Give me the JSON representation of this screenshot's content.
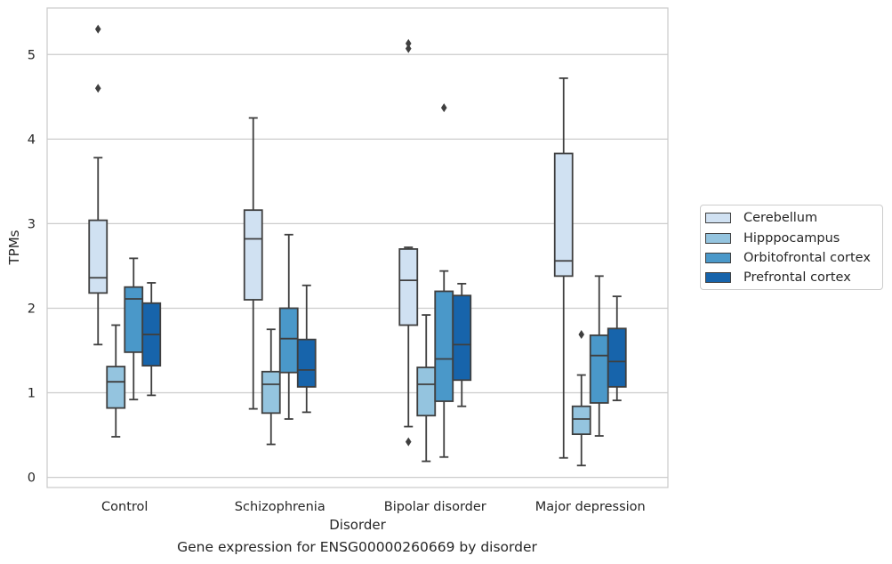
{
  "chart_data": {
    "type": "box",
    "title": "",
    "xlabel": "Disorder",
    "ylabel": "TPMs",
    "caption": "Gene expression for ENSG00000260669 by disorder",
    "categories": [
      "Control",
      "Schizophrenia",
      "Bipolar disorder",
      "Major depression"
    ],
    "ylim": [
      -0.12,
      5.55
    ],
    "yticks": [
      0,
      1,
      2,
      3,
      4,
      5
    ],
    "grid": "horizontal",
    "legend": {
      "placement": "right",
      "entries": [
        "Cerebellum",
        "Hipppocampus",
        "Orbitofrontal cortex",
        "Prefrontal cortex"
      ]
    },
    "series": [
      {
        "name": "Cerebellum",
        "color": "#d0e1f2",
        "boxes": [
          {
            "whislo": 1.57,
            "q1": 2.18,
            "med": 2.36,
            "q3": 3.04,
            "whishi": 3.78,
            "fliers": [
              4.6,
              5.3
            ]
          },
          {
            "whislo": 0.81,
            "q1": 2.1,
            "med": 2.82,
            "q3": 3.16,
            "whishi": 4.25,
            "fliers": []
          },
          {
            "whislo": 0.6,
            "q1": 1.8,
            "med": 2.33,
            "q3": 2.7,
            "whishi": 2.72,
            "fliers": [
              0.42,
              5.07,
              5.13
            ]
          },
          {
            "whislo": 0.23,
            "q1": 2.38,
            "med": 2.56,
            "q3": 3.83,
            "whishi": 4.72,
            "fliers": []
          }
        ]
      },
      {
        "name": "Hipppocampus",
        "color": "#94c4df",
        "boxes": [
          {
            "whislo": 0.48,
            "q1": 0.82,
            "med": 1.13,
            "q3": 1.31,
            "whishi": 1.8,
            "fliers": []
          },
          {
            "whislo": 0.39,
            "q1": 0.76,
            "med": 1.1,
            "q3": 1.25,
            "whishi": 1.75,
            "fliers": []
          },
          {
            "whislo": 0.19,
            "q1": 0.73,
            "med": 1.1,
            "q3": 1.3,
            "whishi": 1.92,
            "fliers": []
          },
          {
            "whislo": 0.14,
            "q1": 0.51,
            "med": 0.69,
            "q3": 0.84,
            "whishi": 1.21,
            "fliers": [
              1.69
            ]
          }
        ]
      },
      {
        "name": "Orbitofrontal cortex",
        "color": "#4a98c9",
        "boxes": [
          {
            "whislo": 0.92,
            "q1": 1.48,
            "med": 2.11,
            "q3": 2.25,
            "whishi": 2.59,
            "fliers": []
          },
          {
            "whislo": 0.69,
            "q1": 1.24,
            "med": 1.64,
            "q3": 2.0,
            "whishi": 2.87,
            "fliers": []
          },
          {
            "whislo": 0.24,
            "q1": 0.9,
            "med": 1.4,
            "q3": 2.2,
            "whishi": 2.44,
            "fliers": [
              4.37
            ]
          },
          {
            "whislo": 0.49,
            "q1": 0.88,
            "med": 1.44,
            "q3": 1.68,
            "whishi": 2.38,
            "fliers": []
          }
        ]
      },
      {
        "name": "Prefrontal cortex",
        "color": "#1764ab",
        "boxes": [
          {
            "whislo": 0.97,
            "q1": 1.32,
            "med": 1.69,
            "q3": 2.06,
            "whishi": 2.3,
            "fliers": []
          },
          {
            "whislo": 0.77,
            "q1": 1.07,
            "med": 1.27,
            "q3": 1.63,
            "whishi": 2.27,
            "fliers": []
          },
          {
            "whislo": 0.84,
            "q1": 1.15,
            "med": 1.57,
            "q3": 2.15,
            "whishi": 2.29,
            "fliers": []
          },
          {
            "whislo": 0.91,
            "q1": 1.07,
            "med": 1.37,
            "q3": 1.76,
            "whishi": 2.14,
            "fliers": []
          }
        ]
      }
    ]
  }
}
